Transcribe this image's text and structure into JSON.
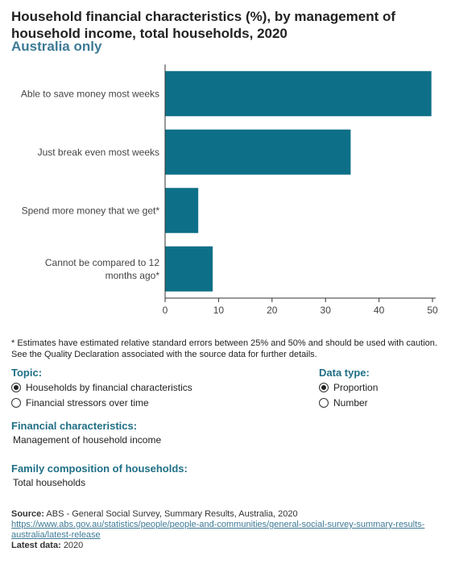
{
  "title": "Household financial characteristics (%), by management of household income, total households, 2020",
  "subtitle": "Australia only",
  "chart_data": {
    "type": "bar",
    "orientation": "horizontal",
    "categories": [
      "Able to save money most weeks",
      "Just break even most weeks",
      "Spend more money that we get*",
      "Cannot be compared to 12 months ago*"
    ],
    "values": [
      49.8,
      34.7,
      6.2,
      8.9
    ],
    "xlim": [
      0,
      50
    ],
    "x_ticks": [
      "0",
      "10",
      "20",
      "30",
      "40",
      "50"
    ],
    "bar_color": "#0e7088",
    "grid": false
  },
  "footnote": {
    "line1": "* Estimates have estimated relative standard errors between 25% and 50% and should be used with caution.",
    "line2": "See the Quality Declaration associated with the source data for further details."
  },
  "topic": {
    "label": "Topic:",
    "options": [
      {
        "label": "Households by financial characteristics",
        "selected": true
      },
      {
        "label": "Financial stressors over time",
        "selected": false
      }
    ]
  },
  "data_type": {
    "label": "Data type:",
    "options": [
      {
        "label": "Proportion",
        "selected": true
      },
      {
        "label": "Number",
        "selected": false
      }
    ]
  },
  "financial_characteristics": {
    "label": "Financial characteristics:",
    "value": "Management of household income"
  },
  "family_composition": {
    "label": "Family composition of households:",
    "value": "Total households"
  },
  "source": {
    "label": "Source:",
    "text": "ABS - General Social Survey, Summary Results, Australia, 2020",
    "link_line1": "https://www.abs.gov.au/statistics/people/people-and-communities/general-social-survey-summary-results-",
    "link_line2": "australia/latest-release",
    "latest_label": "Latest data:",
    "latest_value": "2020"
  }
}
